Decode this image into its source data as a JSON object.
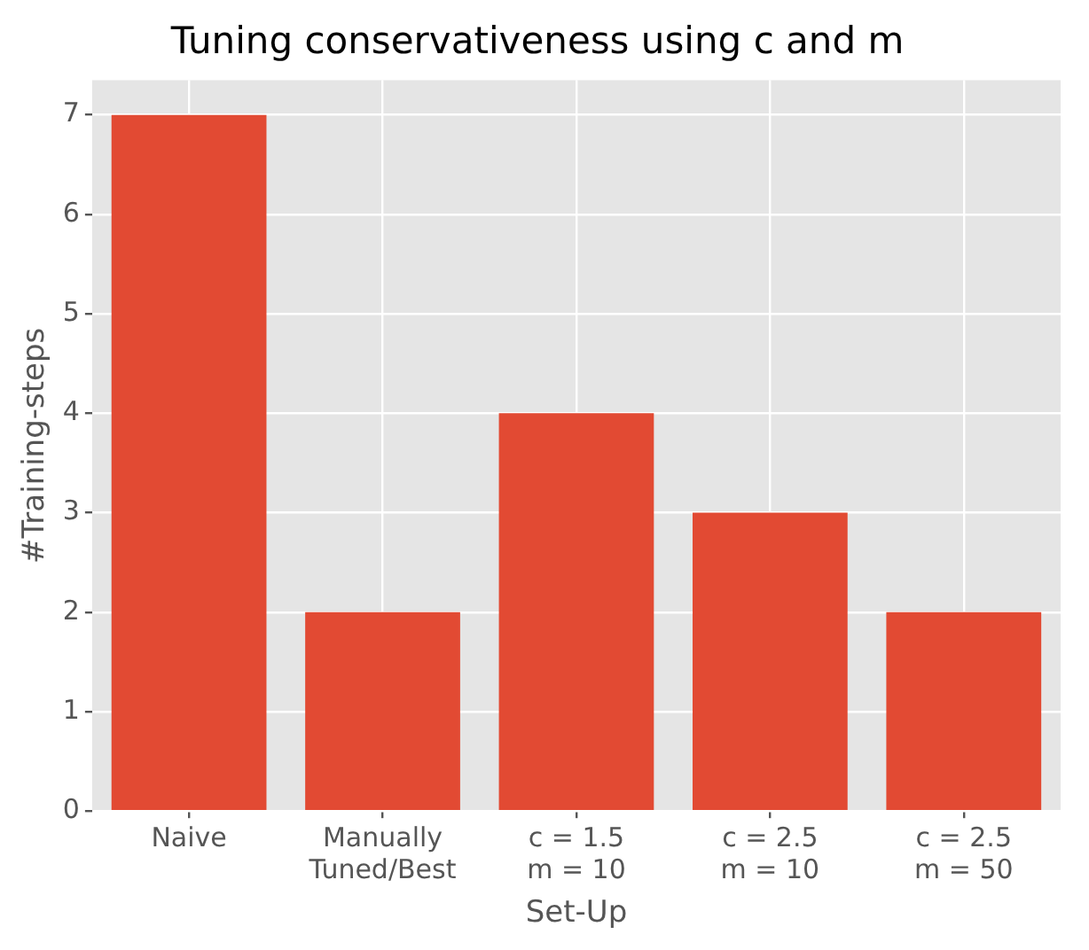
{
  "chart_data": {
    "type": "bar",
    "title": "Tuning conservativeness using c and m",
    "xlabel": "Set-Up",
    "ylabel": "#Training-steps",
    "categories": [
      "Naive",
      "Manually\nTuned/Best",
      "c = 1.5\nm = 10",
      "c = 2.5\nm = 10",
      "c = 2.5\nm = 50"
    ],
    "values": [
      7,
      2,
      4,
      3,
      2
    ],
    "color": "#e24a33",
    "ylim": [
      0,
      7.35
    ],
    "yticks": [
      0,
      1,
      2,
      3,
      4,
      5,
      6,
      7
    ],
    "grid": true
  }
}
